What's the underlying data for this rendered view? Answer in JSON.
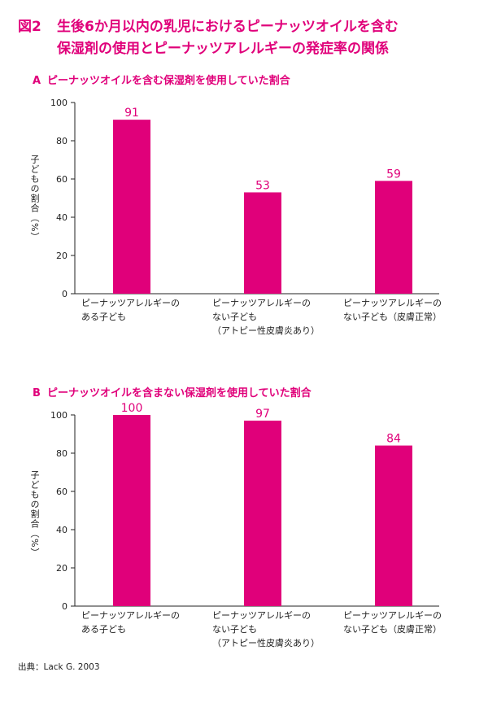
{
  "figure": {
    "number": "図2",
    "title_line1": "生後6か月以内の乳児におけるピーナッツオイルを含む",
    "title_line2": "保湿剤の使用とピーナッツアレルギーの発症率の関係"
  },
  "source": "出典：Lack G. 2003",
  "chart_data": [
    {
      "type": "bar",
      "panel": "A",
      "title": "ピーナッツオイルを含む保湿剤を使用していた割合",
      "ylabel": "子どもの割合（%）",
      "ylim": [
        0,
        100
      ],
      "yticks": [
        0,
        20,
        40,
        60,
        80,
        100
      ],
      "categories": [
        [
          "ピーナッツアレルギーの",
          "ある子ども"
        ],
        [
          "ピーナッツアレルギーの",
          "ない子ども",
          "（アトピー性皮膚炎あり）"
        ],
        [
          "ピーナッツアレルギーの",
          "ない子ども（皮膚正常）"
        ]
      ],
      "values": [
        91,
        53,
        59
      ],
      "color": "#e0007a"
    },
    {
      "type": "bar",
      "panel": "B",
      "title": "ピーナッツオイルを含まない保湿剤を使用していた割合",
      "ylabel": "子どもの割合（%）",
      "ylim": [
        0,
        100
      ],
      "yticks": [
        0,
        20,
        40,
        60,
        80,
        100
      ],
      "categories": [
        [
          "ピーナッツアレルギーの",
          "ある子ども"
        ],
        [
          "ピーナッツアレルギーの",
          "ない子ども",
          "（アトピー性皮膚炎あり）"
        ],
        [
          "ピーナッツアレルギーの",
          "ない子ども（皮膚正常）"
        ]
      ],
      "values": [
        100,
        97,
        84
      ],
      "color": "#e0007a"
    }
  ]
}
